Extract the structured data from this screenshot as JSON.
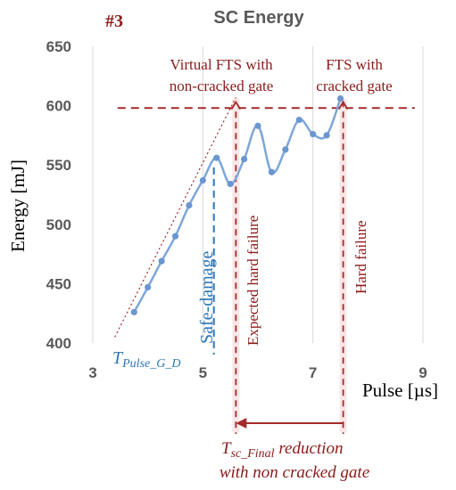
{
  "chart_data": {
    "type": "line",
    "title": "SC Energy",
    "panel_label": "#3",
    "xlabel": "Pulse [µs]",
    "ylabel": "Energy [mJ]",
    "xlim": [
      3,
      9
    ],
    "ylim": [
      400,
      650
    ],
    "x_ticks": [
      3,
      5,
      7,
      9
    ],
    "y_ticks": [
      400,
      450,
      500,
      550,
      600,
      650
    ],
    "grid": "vertical",
    "series": [
      {
        "x": [
          3.75,
          4.0,
          4.25,
          4.5,
          4.75,
          5.0,
          5.25,
          5.5,
          5.75,
          6.0,
          6.25,
          6.5,
          6.75,
          7.0,
          7.25,
          7.5
        ],
        "y": [
          426,
          447,
          469,
          490,
          516,
          537,
          556,
          534,
          555,
          583,
          544,
          563,
          588,
          576,
          575,
          606
        ]
      }
    ],
    "reference_lines": {
      "hard_failure_level": 598,
      "virtual_fts_x": 5.6,
      "hard_failure_x": 7.55,
      "safe_damage_x": 5.2,
      "extrapolation": [
        [
          3.4,
          405
        ],
        [
          5.6,
          607
        ]
      ]
    },
    "annotations": {
      "virtual_fts": [
        "Virtual FTS with",
        "non-cracked gate"
      ],
      "fts_cracked": [
        "FTS with",
        "cracked gate"
      ],
      "expected_hard_failure": "Expected hard failure",
      "hard_failure": "Hard failure",
      "safe_damage": "Safe-damage",
      "t_pulse_main": "T",
      "t_pulse_sub": "Pulse_G_D",
      "tsc_main": "T",
      "tsc_sub": "sc_Final",
      "tsc_line1_rest": " reduction",
      "tsc_line2": "with non cracked gate"
    }
  }
}
